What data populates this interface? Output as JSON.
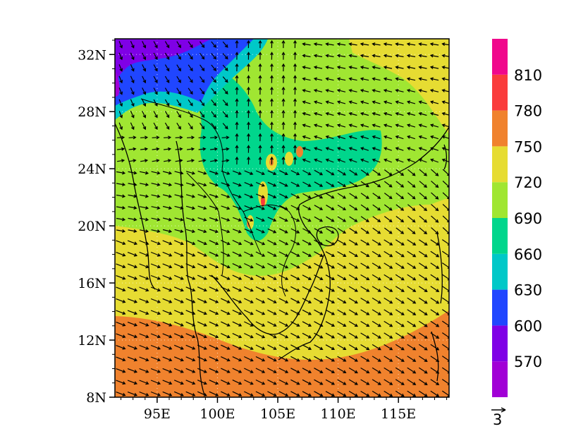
{
  "map": {
    "type": "filled-contour-with-wind-vectors",
    "lon_range": [
      91.5,
      119.2
    ],
    "lat_range": [
      8,
      33.1
    ],
    "lon_ticks": [
      {
        "value": 95,
        "label": "95E"
      },
      {
        "value": 100,
        "label": "100E"
      },
      {
        "value": 105,
        "label": "105E"
      },
      {
        "value": 110,
        "label": "110E"
      },
      {
        "value": 115,
        "label": "115E"
      }
    ],
    "lat_ticks": [
      {
        "value": 8,
        "label": "8N"
      },
      {
        "value": 12,
        "label": "12N"
      },
      {
        "value": 16,
        "label": "16N"
      },
      {
        "value": 20,
        "label": "20N"
      },
      {
        "value": 24,
        "label": "24N"
      },
      {
        "value": 28,
        "label": "28N"
      },
      {
        "value": 32,
        "label": "32N"
      }
    ],
    "grid": "dotted",
    "features": [
      "coastlines",
      "country-borders",
      "wind-vectors"
    ]
  },
  "colorbar": {
    "levels": [
      {
        "color": "#a100d6",
        "label": "570"
      },
      {
        "color": "#7f00e6",
        "label": "600"
      },
      {
        "color": "#2046ff",
        "label": "630"
      },
      {
        "color": "#00c8c8",
        "label": "660"
      },
      {
        "color": "#00d68c",
        "label": "690"
      },
      {
        "color": "#a0e632",
        "label": "720"
      },
      {
        "color": "#e6dc32",
        "label": "750"
      },
      {
        "color": "#f0822d",
        "label": "780"
      },
      {
        "color": "#fa3c3c",
        "label": "810"
      },
      {
        "color": "#f0088c",
        "label": ""
      }
    ]
  },
  "vector_key": {
    "label": "3"
  }
}
